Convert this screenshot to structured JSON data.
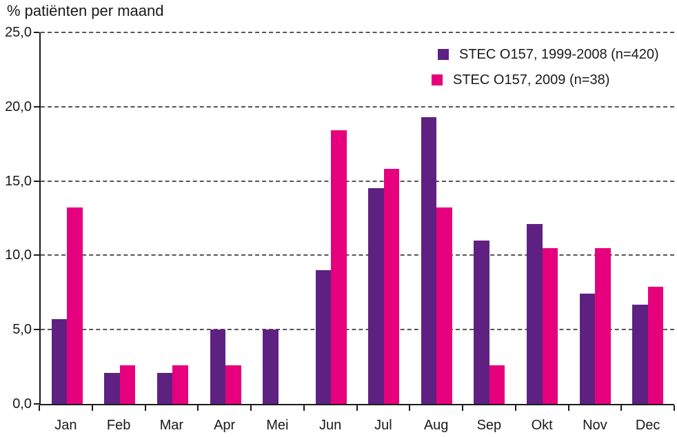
{
  "title": "% patiënten per maand",
  "colors": {
    "series_1999_2008": "#5E2181",
    "series_2009": "#E6007E",
    "axis": "#1a1a1a",
    "gridline": "#555555",
    "background": "#ffffff"
  },
  "legend": {
    "position": "top-right",
    "items": [
      {
        "label": "STEC O157, 1999-2008 (n=420)",
        "color": "#5E2181"
      },
      {
        "label": "STEC O157, 2009 (n=38)",
        "color": "#E6007E"
      }
    ]
  },
  "chart_data": {
    "type": "bar",
    "title": "% patiënten per maand",
    "xlabel": "",
    "ylabel": "% patiënten per maand",
    "categories": [
      "Jan",
      "Feb",
      "Mar",
      "Apr",
      "Mei",
      "Jun",
      "Jul",
      "Aug",
      "Sep",
      "Okt",
      "Nov",
      "Dec"
    ],
    "series": [
      {
        "key": "1999-2008",
        "name": "STEC O157, 1999-2008 (n=420)",
        "color": "#5E2181",
        "values": [
          5.7,
          2.1,
          2.1,
          5.0,
          5.0,
          9.0,
          14.5,
          19.3,
          11.0,
          12.1,
          7.4,
          6.7
        ]
      },
      {
        "key": "2009",
        "name": "STEC O157, 2009 (n=38)",
        "color": "#E6007E",
        "values": [
          13.2,
          2.6,
          2.6,
          2.6,
          0,
          18.4,
          15.8,
          13.2,
          2.6,
          10.5,
          10.5,
          7.9
        ]
      }
    ],
    "ylim": [
      0,
      25
    ],
    "ytick_step": 5,
    "ytick_labels": [
      "0,0",
      "5,0",
      "10,0",
      "15,0",
      "20,0",
      "25,0"
    ],
    "grid": "horizontal-dashed",
    "legend_position": "top-right"
  }
}
